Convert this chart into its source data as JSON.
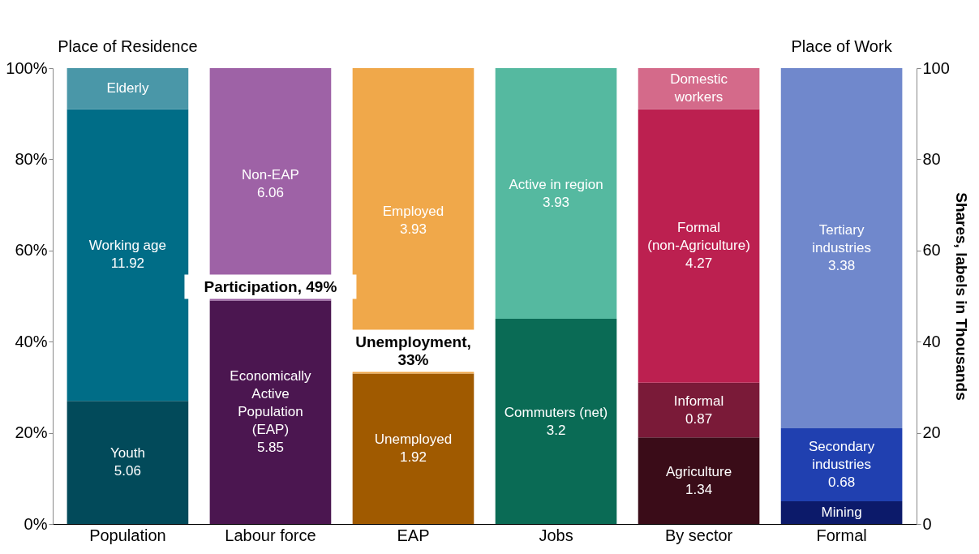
{
  "chart_data": {
    "type": "bar",
    "stacked": true,
    "legend": false,
    "data_labels": false,
    "categories": [
      "Population",
      "Labour force",
      "EAP",
      "Jobs",
      "By sector",
      "Formal"
    ],
    "series": [
      {
        "name": "Youth\n5.06",
        "color": "#024a5a",
        "values": [
          27,
          null,
          null,
          null,
          null,
          null
        ]
      },
      {
        "name": "Working age\n11.92",
        "color": "#006d87",
        "values": [
          64,
          null,
          null,
          null,
          null,
          null
        ]
      },
      {
        "name": "Elderly",
        "color": "#4a97a8",
        "values": [
          9,
          null,
          null,
          null,
          null,
          null
        ]
      },
      {
        "name": "Economically\nActive\nPopulation\n(EAP)\n5.85",
        "color": "#4b1650",
        "values": [
          null,
          49,
          null,
          null,
          null,
          null
        ]
      },
      {
        "name": "Non-EAP\n6.06",
        "color": "#9e62a6",
        "values": [
          null,
          51,
          null,
          null,
          null,
          null
        ]
      },
      {
        "name": "Unemployed\n1.92",
        "color": "#a05a00",
        "values": [
          null,
          null,
          33,
          null,
          null,
          null
        ]
      },
      {
        "name": "Employed\n3.93",
        "color": "#f0a84a",
        "values": [
          null,
          null,
          67,
          null,
          null,
          null
        ]
      },
      {
        "name": "Commuters (net)\n3.2",
        "color": "#0a6b55",
        "values": [
          null,
          null,
          null,
          45,
          null,
          null
        ]
      },
      {
        "name": "Active in region\n3.93",
        "color": "#55b9a0",
        "values": [
          null,
          null,
          null,
          55,
          null,
          null
        ]
      },
      {
        "name": "Agriculture\n1.34",
        "color": "#3a0c18",
        "values": [
          null,
          null,
          null,
          null,
          19,
          null
        ]
      },
      {
        "name": "Informal\n0.87",
        "color": "#7a1a38",
        "values": [
          null,
          null,
          null,
          null,
          12,
          null
        ]
      },
      {
        "name": "Formal\n(non-Agriculture)\n4.27",
        "color": "#bc2050",
        "values": [
          null,
          null,
          null,
          null,
          60,
          null
        ]
      },
      {
        "name": "Domestic\nworkers",
        "color": "#d46a8a",
        "values": [
          null,
          null,
          null,
          null,
          9,
          null
        ]
      },
      {
        "name": "Mining",
        "color": "#0c1a6a",
        "values": [
          null,
          null,
          null,
          null,
          null,
          5
        ]
      },
      {
        "name": "Secondary\nindustries\n0.68",
        "color": "#2040b0",
        "values": [
          null,
          null,
          null,
          null,
          null,
          16
        ]
      },
      {
        "name": "Tertiary\nindustries\n3.38",
        "color": "#7088cc",
        "values": [
          null,
          null,
          null,
          null,
          null,
          79
        ]
      }
    ],
    "ylim": [
      0,
      100
    ],
    "yticks": [
      {
        "value": 0,
        "label": "0%"
      },
      {
        "value": 20,
        "label": "20%"
      },
      {
        "value": 40,
        "label": "40%"
      },
      {
        "value": 60,
        "label": "60%"
      },
      {
        "value": 80,
        "label": "80%"
      },
      {
        "value": 100,
        "label": "100%"
      }
    ],
    "y2lim": [
      0,
      100
    ],
    "y2ticks": [
      0,
      20,
      40,
      60,
      80,
      100
    ],
    "y2label": "Shares, labels in Thousands",
    "annotations": [
      "Place of Residence",
      "Place of Work",
      {
        "text": "Participation, 49%",
        "x": "Labour force",
        "y": 49
      },
      {
        "text": "Unemployment,\n33%",
        "x": "EAP",
        "y": 33
      }
    ]
  }
}
